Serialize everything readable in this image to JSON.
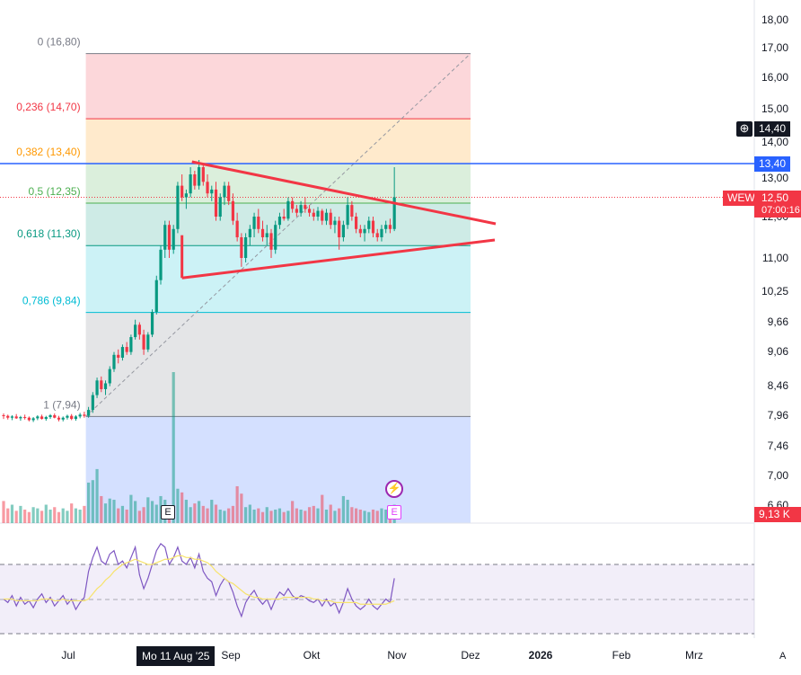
{
  "chart_data": {
    "type": "candlestick",
    "price_axis": {
      "ticks": [
        "18,00",
        "17,00",
        "16,00",
        "15,00",
        "14,00",
        "13,00",
        "12,00",
        "11,00",
        "10,25",
        "9,66",
        "9,06",
        "8,46",
        "7,96",
        "7,46",
        "7,00",
        "6,60"
      ],
      "tick_values": [
        18.0,
        17.0,
        16.0,
        15.0,
        14.0,
        13.0,
        12.0,
        11.0,
        10.25,
        9.66,
        9.06,
        8.46,
        7.96,
        7.46,
        7.0,
        6.6
      ]
    },
    "time_axis": {
      "labels": [
        "Jul",
        "Sep",
        "Okt",
        "Nov",
        "Dez",
        "2026",
        "Feb",
        "Mrz"
      ],
      "crosshair_label": "Mo 11 Aug '25"
    },
    "fibonacci": [
      {
        "label": "0 (16,80)",
        "price": 16.8,
        "color": "#787b86"
      },
      {
        "label": "0,236 (14,70)",
        "price": 14.7,
        "color": "#f23645"
      },
      {
        "label": "0,382 (13,40)",
        "price": 13.4,
        "color": "#ff9800"
      },
      {
        "label": "0,5 (12,35)",
        "price": 12.35,
        "color": "#4caf50"
      },
      {
        "label": "0,618 (11,30)",
        "price": 11.3,
        "color": "#089981"
      },
      {
        "label": "0,786 (9,84)",
        "price": 9.84,
        "color": "#00bcd4"
      },
      {
        "label": "1 (7,94)",
        "price": 7.94,
        "color": "#787b86"
      }
    ],
    "horizontal_line": {
      "price": 13.4,
      "label": "13,40",
      "color": "#2962ff"
    },
    "crosshair_price": {
      "label": "14,40"
    },
    "last_price": {
      "symbol": "WEW",
      "price_label": "12,50",
      "countdown": "07:00:16",
      "color": "#f23645"
    },
    "volume_label": "9,13 K",
    "candles": [
      [
        7.96,
        7.99,
        7.9,
        7.95
      ],
      [
        7.95,
        7.97,
        7.89,
        7.92
      ],
      [
        7.92,
        7.96,
        7.88,
        7.94
      ],
      [
        7.94,
        7.98,
        7.9,
        7.91
      ],
      [
        7.91,
        7.95,
        7.87,
        7.93
      ],
      [
        7.93,
        7.97,
        7.89,
        7.92
      ],
      [
        7.92,
        7.94,
        7.86,
        7.88
      ],
      [
        7.88,
        7.93,
        7.85,
        7.91
      ],
      [
        7.91,
        7.96,
        7.88,
        7.94
      ],
      [
        7.94,
        7.97,
        7.89,
        7.9
      ],
      [
        7.9,
        7.95,
        7.87,
        7.93
      ],
      [
        7.93,
        7.98,
        7.9,
        7.96
      ],
      [
        7.96,
        7.99,
        7.91,
        7.92
      ],
      [
        7.92,
        7.95,
        7.86,
        7.89
      ],
      [
        7.89,
        7.94,
        7.86,
        7.92
      ],
      [
        7.92,
        7.97,
        7.89,
        7.95
      ],
      [
        7.95,
        7.98,
        7.88,
        7.9
      ],
      [
        7.9,
        7.96,
        7.87,
        7.94
      ],
      [
        7.94,
        8.0,
        7.91,
        7.97
      ],
      [
        7.97,
        8.02,
        7.92,
        7.95
      ],
      [
        7.95,
        8.1,
        7.92,
        8.05
      ],
      [
        8.05,
        8.35,
        8.0,
        8.3
      ],
      [
        8.3,
        8.6,
        8.25,
        8.55
      ],
      [
        8.55,
        8.62,
        8.35,
        8.4
      ],
      [
        8.4,
        8.55,
        8.3,
        8.5
      ],
      [
        8.5,
        8.8,
        8.45,
        8.75
      ],
      [
        8.75,
        9.05,
        8.7,
        9.0
      ],
      [
        9.0,
        9.1,
        8.85,
        8.95
      ],
      [
        8.95,
        9.2,
        8.9,
        9.15
      ],
      [
        9.15,
        9.25,
        9.0,
        9.05
      ],
      [
        9.05,
        9.4,
        9.0,
        9.35
      ],
      [
        9.35,
        9.7,
        9.3,
        9.6
      ],
      [
        9.6,
        9.65,
        9.3,
        9.4
      ],
      [
        9.4,
        9.5,
        9.0,
        9.1
      ],
      [
        9.1,
        9.45,
        9.05,
        9.4
      ],
      [
        9.4,
        9.9,
        9.35,
        9.85
      ],
      [
        9.85,
        10.6,
        9.8,
        10.5
      ],
      [
        10.5,
        11.3,
        10.4,
        11.2
      ],
      [
        11.2,
        11.9,
        11.0,
        11.8
      ],
      [
        11.8,
        11.9,
        11.0,
        11.2
      ],
      [
        11.2,
        11.8,
        11.1,
        11.7
      ],
      [
        11.7,
        12.9,
        11.6,
        12.8
      ],
      [
        12.8,
        13.1,
        12.4,
        12.5
      ],
      [
        12.5,
        12.7,
        12.2,
        12.6
      ],
      [
        12.6,
        13.3,
        12.5,
        13.1
      ],
      [
        13.1,
        13.2,
        12.7,
        12.8
      ],
      [
        12.8,
        13.5,
        12.7,
        13.3
      ],
      [
        13.3,
        13.4,
        12.8,
        12.9
      ],
      [
        12.9,
        13.1,
        12.5,
        12.6
      ],
      [
        12.6,
        12.8,
        12.4,
        12.7
      ],
      [
        12.7,
        12.9,
        11.9,
        12.0
      ],
      [
        12.0,
        12.6,
        11.9,
        12.5
      ],
      [
        12.5,
        12.9,
        12.3,
        12.8
      ],
      [
        12.8,
        12.9,
        12.3,
        12.4
      ],
      [
        12.4,
        12.6,
        11.8,
        11.9
      ],
      [
        11.9,
        12.1,
        11.4,
        11.5
      ],
      [
        11.5,
        11.6,
        10.8,
        11.0
      ],
      [
        11.0,
        11.6,
        10.9,
        11.5
      ],
      [
        11.5,
        11.8,
        11.3,
        11.7
      ],
      [
        11.7,
        12.1,
        11.5,
        12.0
      ],
      [
        12.0,
        12.2,
        11.6,
        11.7
      ],
      [
        11.7,
        11.9,
        11.4,
        11.5
      ],
      [
        11.5,
        11.8,
        11.3,
        11.6
      ],
      [
        11.6,
        11.7,
        11.0,
        11.2
      ],
      [
        11.2,
        11.9,
        11.1,
        11.8
      ],
      [
        11.8,
        12.1,
        11.7,
        12.0
      ],
      [
        12.0,
        12.2,
        11.9,
        11.95
      ],
      [
        11.95,
        12.5,
        11.9,
        12.4
      ],
      [
        12.4,
        12.5,
        12.1,
        12.2
      ],
      [
        12.2,
        12.3,
        12.0,
        12.1
      ],
      [
        12.1,
        12.4,
        12.0,
        12.3
      ],
      [
        12.3,
        12.5,
        12.1,
        12.2
      ],
      [
        12.2,
        12.3,
        12.0,
        12.1
      ],
      [
        12.1,
        12.2,
        11.9,
        12.0
      ],
      [
        12.0,
        12.25,
        11.9,
        12.15
      ],
      [
        12.15,
        12.2,
        11.8,
        11.9
      ],
      [
        11.9,
        12.2,
        11.8,
        12.1
      ],
      [
        12.1,
        12.2,
        11.7,
        11.8
      ],
      [
        11.8,
        12.0,
        11.6,
        11.9
      ],
      [
        11.9,
        12.0,
        11.2,
        11.5
      ],
      [
        11.5,
        11.9,
        11.4,
        11.8
      ],
      [
        11.8,
        12.5,
        11.7,
        12.3
      ],
      [
        12.3,
        12.4,
        11.9,
        12.0
      ],
      [
        12.0,
        12.1,
        11.6,
        11.7
      ],
      [
        11.7,
        11.8,
        11.5,
        11.6
      ],
      [
        11.6,
        11.8,
        11.4,
        11.7
      ],
      [
        11.7,
        12.0,
        11.6,
        11.9
      ],
      [
        11.9,
        12.0,
        11.5,
        11.6
      ],
      [
        11.6,
        11.7,
        11.4,
        11.5
      ],
      [
        11.5,
        11.8,
        11.4,
        11.7
      ],
      [
        11.7,
        11.9,
        11.6,
        11.8
      ],
      [
        11.8,
        11.95,
        11.6,
        11.7
      ],
      [
        11.7,
        13.3,
        11.65,
        12.5
      ]
    ],
    "volume": [
      1.8,
      1.2,
      1.5,
      1.0,
      1.4,
      1.1,
      0.9,
      1.3,
      1.2,
      1.0,
      1.5,
      1.1,
      1.3,
      0.9,
      1.2,
      1.0,
      1.6,
      1.2,
      1.1,
      1.4,
      3.3,
      3.5,
      4.4,
      2.2,
      1.6,
      2.0,
      1.9,
      1.2,
      1.4,
      1.1,
      2.3,
      1.8,
      1.0,
      1.3,
      2.1,
      1.8,
      1.5,
      2.2,
      1.9,
      1.4,
      12.3,
      2.8,
      2.5,
      1.9,
      1.3,
      1.6,
      1.8,
      1.4,
      1.2,
      1.9,
      1.5,
      1.1,
      1.0,
      1.2,
      1.4,
      3.0,
      2.4,
      1.3,
      1.5,
      1.1,
      1.2,
      0.9,
      1.3,
      1.0,
      1.1,
      1.2,
      0.9,
      1.0,
      1.8,
      1.2,
      1.1,
      1.0,
      1.3,
      1.4,
      1.2,
      2.3,
      1.1,
      1.5,
      1.0,
      1.2,
      2.2,
      1.9,
      1.3,
      1.2,
      1.1,
      1.0,
      0.9,
      1.1,
      1.0,
      1.2,
      1.1,
      1.3,
      1.5
    ],
    "rsi": [
      50,
      48,
      52,
      46,
      51,
      47,
      49,
      45,
      50,
      53,
      48,
      51,
      46,
      49,
      52,
      47,
      50,
      44,
      48,
      51,
      66,
      74,
      80,
      72,
      70,
      76,
      78,
      70,
      72,
      68,
      74,
      80,
      64,
      56,
      62,
      70,
      78,
      82,
      80,
      70,
      74,
      80,
      72,
      70,
      74,
      68,
      76,
      66,
      62,
      60,
      52,
      58,
      62,
      60,
      54,
      46,
      40,
      48,
      52,
      55,
      50,
      47,
      50,
      44,
      50,
      54,
      52,
      56,
      52,
      50,
      52,
      51,
      49,
      48,
      50,
      46,
      50,
      46,
      48,
      42,
      48,
      56,
      50,
      46,
      44,
      46,
      50,
      46,
      44,
      47,
      50,
      48,
      62
    ],
    "rsi_ma": [
      50,
      50,
      50,
      49,
      49,
      49,
      49,
      49,
      49,
      50,
      50,
      50,
      49,
      49,
      50,
      49,
      49,
      49,
      49,
      49,
      50,
      53,
      56,
      58,
      61,
      63,
      66,
      68,
      70,
      71,
      72,
      73,
      72,
      71,
      70,
      70,
      71,
      72,
      73,
      73,
      74,
      75,
      75,
      74,
      74,
      73,
      73,
      72,
      71,
      69,
      66,
      64,
      62,
      60,
      59,
      57,
      55,
      53,
      52,
      51,
      51,
      50,
      50,
      50,
      50,
      50,
      51,
      51,
      51,
      51,
      51,
      51,
      51,
      50,
      50,
      49,
      49,
      49,
      48,
      48,
      48,
      48,
      48,
      48,
      47,
      47,
      47,
      47,
      47,
      47,
      47,
      48,
      49
    ],
    "events": [
      {
        "label": "E"
      },
      {
        "label": "E"
      }
    ]
  }
}
